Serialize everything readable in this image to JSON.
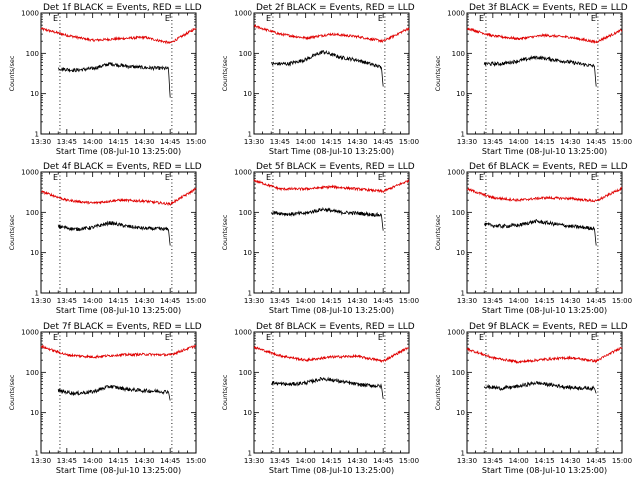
{
  "figure": {
    "x_tick_labels": [
      "13:30",
      "13:45",
      "14:00",
      "14:15",
      "14:30",
      "14:45",
      "15:00"
    ],
    "y_tick_labels": [
      "1",
      "10",
      "100",
      "1000"
    ],
    "ylabel": "Counts/sec",
    "xlabel": "Start Time (08-Jul-10 13:25:00)",
    "event_markers": [
      "E",
      "E"
    ]
  },
  "chart_data": [
    {
      "type": "line",
      "title": "Det 1f BLACK = Events, RED = LLD",
      "xlabel": "Start Time (08-Jul-10 13:25:00)",
      "ylabel": "Counts/sec",
      "y_scale": "log",
      "ylim": [
        1,
        1000
      ],
      "xlim": [
        "13:30",
        "15:00"
      ],
      "event_lines": [
        "13:41",
        "14:46"
      ],
      "series": [
        {
          "color": "#e00000",
          "x": [
            "13:30",
            "13:45",
            "14:00",
            "14:15",
            "14:30",
            "14:45",
            "15:00"
          ],
          "values": [
            410,
            280,
            210,
            230,
            250,
            180,
            420
          ]
        },
        {
          "color": "#000000",
          "x": [
            "13:40",
            "13:50",
            "14:00",
            "14:10",
            "14:20",
            "14:30",
            "14:44",
            "14:45"
          ],
          "values": [
            42,
            38,
            42,
            55,
            48,
            44,
            42,
            8
          ]
        }
      ]
    },
    {
      "type": "line",
      "title": "Det 2f BLACK = Events, RED = LLD",
      "xlabel": "Start Time (08-Jul-10 13:25:00)",
      "ylabel": "Counts/sec",
      "y_scale": "log",
      "ylim": [
        1,
        1000
      ],
      "xlim": [
        "13:30",
        "15:00"
      ],
      "event_lines": [
        "13:41",
        "14:46"
      ],
      "series": [
        {
          "color": "#e00000",
          "x": [
            "13:30",
            "13:45",
            "14:00",
            "14:15",
            "14:30",
            "14:45",
            "15:00"
          ],
          "values": [
            480,
            300,
            240,
            300,
            260,
            200,
            420
          ]
        },
        {
          "color": "#000000",
          "x": [
            "13:40",
            "13:50",
            "14:00",
            "14:10",
            "14:20",
            "14:30",
            "14:44",
            "14:45"
          ],
          "values": [
            55,
            55,
            70,
            110,
            80,
            68,
            45,
            15
          ]
        }
      ]
    },
    {
      "type": "line",
      "title": "Det 3f BLACK = Events, RED = LLD",
      "xlabel": "Start Time (08-Jul-10 13:25:00)",
      "ylabel": "Counts/sec",
      "y_scale": "log",
      "ylim": [
        1,
        1000
      ],
      "xlim": [
        "13:30",
        "15:00"
      ],
      "event_lines": [
        "13:41",
        "14:46"
      ],
      "series": [
        {
          "color": "#e00000",
          "x": [
            "13:30",
            "13:45",
            "14:00",
            "14:15",
            "14:30",
            "14:45",
            "15:00"
          ],
          "values": [
            420,
            270,
            230,
            280,
            250,
            190,
            380
          ]
        },
        {
          "color": "#000000",
          "x": [
            "13:40",
            "13:50",
            "14:00",
            "14:10",
            "14:20",
            "14:30",
            "14:44",
            "14:45"
          ],
          "values": [
            55,
            55,
            65,
            80,
            70,
            60,
            48,
            15
          ]
        }
      ]
    },
    {
      "type": "line",
      "title": "Det 4f BLACK = Events, RED = LLD",
      "xlabel": "Start Time (08-Jul-10 13:25:00)",
      "ylabel": "Counts/sec",
      "y_scale": "log",
      "ylim": [
        1,
        1000
      ],
      "xlim": [
        "13:30",
        "15:00"
      ],
      "event_lines": [
        "13:41",
        "14:46"
      ],
      "series": [
        {
          "color": "#e00000",
          "x": [
            "13:30",
            "13:45",
            "14:00",
            "14:15",
            "14:30",
            "14:45",
            "15:00"
          ],
          "values": [
            330,
            200,
            170,
            200,
            190,
            160,
            380
          ]
        },
        {
          "color": "#000000",
          "x": [
            "13:40",
            "13:50",
            "14:00",
            "14:10",
            "14:20",
            "14:30",
            "14:44",
            "14:45"
          ],
          "values": [
            45,
            38,
            42,
            55,
            45,
            40,
            38,
            15
          ]
        }
      ]
    },
    {
      "type": "line",
      "title": "Det 5f BLACK = Events, RED = LLD",
      "xlabel": "Start Time (08-Jul-10 13:25:00)",
      "ylabel": "Counts/sec",
      "y_scale": "log",
      "ylim": [
        1,
        1000
      ],
      "xlim": [
        "13:30",
        "15:00"
      ],
      "event_lines": [
        "13:41",
        "14:46"
      ],
      "series": [
        {
          "color": "#e00000",
          "x": [
            "13:30",
            "13:45",
            "14:00",
            "14:15",
            "14:30",
            "14:45",
            "15:00"
          ],
          "values": [
            620,
            380,
            380,
            430,
            380,
            330,
            620
          ]
        },
        {
          "color": "#000000",
          "x": [
            "13:40",
            "13:50",
            "14:00",
            "14:10",
            "14:20",
            "14:30",
            "14:44",
            "14:45"
          ],
          "values": [
            100,
            90,
            95,
            120,
            100,
            95,
            85,
            35
          ]
        }
      ]
    },
    {
      "type": "line",
      "title": "Det 6f BLACK = Events, RED = LLD",
      "xlabel": "Start Time (08-Jul-10 13:25:00)",
      "ylabel": "Counts/sec",
      "y_scale": "log",
      "ylim": [
        1,
        1000
      ],
      "xlim": [
        "13:30",
        "15:00"
      ],
      "event_lines": [
        "13:41",
        "14:46"
      ],
      "series": [
        {
          "color": "#e00000",
          "x": [
            "13:30",
            "13:45",
            "14:00",
            "14:15",
            "14:30",
            "14:45",
            "15:00"
          ],
          "values": [
            380,
            230,
            200,
            230,
            220,
            190,
            400
          ]
        },
        {
          "color": "#000000",
          "x": [
            "13:40",
            "13:50",
            "14:00",
            "14:10",
            "14:20",
            "14:30",
            "14:44",
            "14:45"
          ],
          "values": [
            50,
            45,
            48,
            60,
            52,
            45,
            40,
            15
          ]
        }
      ]
    },
    {
      "type": "line",
      "title": "Det 7f BLACK = Events, RED = LLD",
      "xlabel": "Start Time (08-Jul-10 13:25:00)",
      "ylabel": "Counts/sec",
      "y_scale": "log",
      "ylim": [
        1,
        1000
      ],
      "xlim": [
        "13:30",
        "15:00"
      ],
      "event_lines": [
        "13:41",
        "14:46"
      ],
      "series": [
        {
          "color": "#e00000",
          "x": [
            "13:30",
            "13:45",
            "14:00",
            "14:15",
            "14:30",
            "14:45",
            "15:00"
          ],
          "values": [
            440,
            270,
            240,
            270,
            280,
            270,
            460
          ]
        },
        {
          "color": "#000000",
          "x": [
            "13:40",
            "13:50",
            "14:00",
            "14:10",
            "14:20",
            "14:30",
            "14:44",
            "14:45"
          ],
          "values": [
            35,
            30,
            33,
            45,
            38,
            35,
            33,
            20
          ]
        }
      ]
    },
    {
      "type": "line",
      "title": "Det 8f BLACK = Events, RED = LLD",
      "xlabel": "Start Time (08-Jul-10 13:25:00)",
      "ylabel": "Counts/sec",
      "y_scale": "log",
      "ylim": [
        1,
        1000
      ],
      "xlim": [
        "13:30",
        "15:00"
      ],
      "event_lines": [
        "13:41",
        "14:46"
      ],
      "series": [
        {
          "color": "#e00000",
          "x": [
            "13:30",
            "13:45",
            "14:00",
            "14:15",
            "14:30",
            "14:45",
            "15:00"
          ],
          "values": [
            420,
            260,
            200,
            240,
            250,
            190,
            420
          ]
        },
        {
          "color": "#000000",
          "x": [
            "13:40",
            "13:50",
            "14:00",
            "14:10",
            "14:20",
            "14:30",
            "14:44",
            "14:45"
          ],
          "values": [
            55,
            50,
            55,
            70,
            60,
            50,
            45,
            22
          ]
        }
      ]
    },
    {
      "type": "line",
      "title": "Det 9f BLACK = Events, RED = LLD",
      "xlabel": "Start Time (08-Jul-10 13:25:00)",
      "ylabel": "Counts/sec",
      "y_scale": "log",
      "ylim": [
        1,
        1000
      ],
      "xlim": [
        "13:30",
        "15:00"
      ],
      "event_lines": [
        "13:41",
        "14:46"
      ],
      "series": [
        {
          "color": "#e00000",
          "x": [
            "13:30",
            "13:45",
            "14:00",
            "14:15",
            "14:30",
            "14:45",
            "15:00"
          ],
          "values": [
            380,
            230,
            180,
            210,
            230,
            190,
            420
          ]
        },
        {
          "color": "#000000",
          "x": [
            "13:40",
            "13:50",
            "14:00",
            "14:10",
            "14:20",
            "14:30",
            "14:44",
            "14:45"
          ],
          "values": [
            45,
            40,
            45,
            55,
            48,
            42,
            40,
            30
          ]
        }
      ]
    }
  ]
}
